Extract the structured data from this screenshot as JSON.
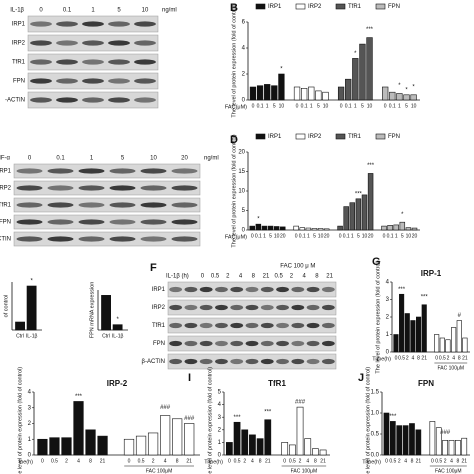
{
  "panels": [
    "B",
    "D",
    "F",
    "G",
    "I",
    "J"
  ],
  "blots": [
    {
      "treatment": "IL-1β",
      "doses": [
        "0",
        "0.1",
        "1",
        "5",
        "10"
      ],
      "unit": "ng/ml",
      "rows": [
        "IRP1",
        "IRP2",
        "TfR1",
        "FPN",
        "-ACTIN"
      ]
    },
    {
      "treatment": "TNF-α",
      "doses": [
        "0",
        "0.1",
        "1",
        "5",
        "10",
        "20"
      ],
      "unit": "ng/ml",
      "rows": [
        "IRP1",
        "IRP2",
        "TfR1",
        "FPN",
        "CTIN"
      ]
    },
    {
      "treatment": "IL-1β (h)",
      "header": "FAC 100 μ M",
      "doses": [
        "0",
        "0.5",
        "2",
        "4",
        "8",
        "21",
        "0.5",
        "2",
        "4",
        "8",
        "21"
      ],
      "rows": [
        "IRP1",
        "IRP2",
        "TfR1",
        "FPN",
        "β-ACTIN"
      ]
    }
  ],
  "chart_data": [
    {
      "type": "bar",
      "ylabel": "The level of protein expression (fold of control)",
      "xlabel": "FAC(μM)",
      "legend": true,
      "categories": [
        "0",
        "0.1",
        "1",
        "5",
        "10"
      ],
      "ylim": [
        0,
        6
      ],
      "yticks": [
        0,
        2,
        4,
        6
      ],
      "annotations": [
        "*",
        "***",
        "*",
        "*",
        "*",
        "*"
      ],
      "series": [
        {
          "name": "IRP1",
          "color": "#111111",
          "values": [
            1,
            1.1,
            1.2,
            1.1,
            2.0
          ]
        },
        {
          "name": "IRP2",
          "color": "#ffffff",
          "values": [
            1,
            0.9,
            1.0,
            0.7,
            0.6
          ]
        },
        {
          "name": "TfR1",
          "color": "#555555",
          "values": [
            1,
            1.6,
            3.2,
            4.3,
            4.8
          ]
        },
        {
          "name": "FPN",
          "color": "#bbbbbb",
          "values": [
            1,
            0.6,
            0.5,
            0.4,
            0.4
          ]
        }
      ]
    },
    {
      "type": "bar",
      "ylabel": "The level of protein expression (fold of control)",
      "xlabel": "FAC(μM)",
      "legend": true,
      "categories": [
        "0",
        "0.1",
        "1",
        "5",
        "10",
        "20"
      ],
      "ylim": [
        0,
        20
      ],
      "yticks": [
        0,
        5,
        10,
        15,
        20
      ],
      "annotations": [
        "*",
        "***",
        "***",
        "*"
      ],
      "series": [
        {
          "name": "IRP1",
          "color": "#111111",
          "values": [
            1,
            1.5,
            1,
            1,
            0.9,
            0.8
          ]
        },
        {
          "name": "IRP2",
          "color": "#ffffff",
          "values": [
            1,
            0.6,
            0.5,
            0.4,
            0.4,
            0.3
          ]
        },
        {
          "name": "TfR1",
          "color": "#555555",
          "values": [
            1,
            6,
            7,
            8,
            9,
            14.5
          ]
        },
        {
          "name": "FPN",
          "color": "#bbbbbb",
          "values": [
            1,
            1.2,
            1.3,
            2,
            0.6,
            0.5
          ]
        }
      ]
    },
    {
      "type": "bar",
      "title": "IRP-1",
      "ylabel": "The level of protein expression (fold of control)",
      "xlabel": "Time(h)",
      "categories": [
        "0",
        "0.5",
        "2",
        "4",
        "8",
        "21"
      ],
      "ylim": [
        0,
        4
      ],
      "yticks": [
        0,
        1,
        2,
        3,
        4
      ],
      "annotations": [
        "***",
        "***",
        "#"
      ],
      "series": [
        {
          "color": "#111111",
          "values": [
            1,
            3.3,
            2.2,
            1.8,
            2.0,
            2.7
          ]
        },
        {
          "name": "FAC 100μM",
          "color": "#ffffff",
          "values": [
            1,
            0.8,
            0.7,
            1.4,
            1.8,
            0.8
          ]
        }
      ]
    },
    {
      "type": "bar",
      "title": "IRP-2",
      "ylabel": "The level of protein expression (fold of control)",
      "xlabel": "me(h)",
      "categories": [
        "0",
        "0.5",
        "2",
        "4",
        "8",
        "21"
      ],
      "ylim": [
        0,
        4
      ],
      "yticks": [
        0,
        1,
        2,
        3,
        4
      ],
      "annotations": [
        "***",
        "###",
        "###"
      ],
      "series": [
        {
          "color": "#111111",
          "values": [
            1,
            1.1,
            1.1,
            3.4,
            1.6,
            1.2
          ]
        },
        {
          "name": "FAC 100μM",
          "color": "#ffffff",
          "values": [
            1,
            1.2,
            1.4,
            2.5,
            2.3,
            2.0
          ]
        }
      ]
    },
    {
      "type": "bar",
      "title": "TfR1",
      "ylabel": "The level of protein expression (fold of control)",
      "xlabel": "Time(h)",
      "categories": [
        "0",
        "0.5",
        "2",
        "4",
        "8",
        "21"
      ],
      "ylim": [
        0,
        5
      ],
      "yticks": [
        0,
        1,
        2,
        3,
        4,
        5
      ],
      "annotations": [
        "***",
        "***",
        "###"
      ],
      "series": [
        {
          "color": "#111111",
          "values": [
            1,
            2.6,
            2.0,
            1.6,
            1.3,
            2.8
          ]
        },
        {
          "name": "FAC 100μM",
          "color": "#ffffff",
          "values": [
            1,
            0.8,
            3.8,
            1.3,
            0.5,
            0.4
          ]
        }
      ]
    },
    {
      "type": "bar",
      "title": "FPN",
      "ylabel": "The level of protein expression (fold of control)",
      "xlabel": "Time(h)",
      "categories": [
        "0",
        "0.5",
        "2",
        "4",
        "8",
        "21"
      ],
      "ylim": [
        0,
        1.5
      ],
      "yticks": [
        {
          "value": 0,
          "label": "0.0"
        },
        {
          "value": 0.5,
          "label": "0.5"
        },
        {
          "value": 1,
          "label": "1.0"
        },
        {
          "value": 1.5,
          "label": "1.5"
        }
      ],
      "annotations": [
        "***",
        "###"
      ],
      "series": [
        {
          "color": "#111111",
          "values": [
            1,
            0.8,
            0.7,
            0.7,
            0.75,
            0.6
          ]
        },
        {
          "name": "FAC 100μM",
          "color": "#ffffff",
          "values": [
            0.8,
            0.65,
            0.35,
            0.35,
            0.35,
            0.4
          ]
        }
      ]
    },
    {
      "type": "bar",
      "ylabel": "of control",
      "categories": [
        "Ctrl",
        "IL-1β"
      ],
      "ylim": [
        0,
        6
      ],
      "yticks": [],
      "annotations": [
        "*"
      ],
      "series": [
        {
          "color": "#111111",
          "values": [
            1,
            5.5
          ]
        }
      ]
    },
    {
      "type": "bar",
      "ylabel": "FPN mRNA expression",
      "categories": [
        "Ctrl",
        "IL-1β"
      ],
      "ylim": [
        0,
        1.5
      ],
      "yticks": [],
      "annotations": [
        "*"
      ],
      "series": [
        {
          "color": "#111111",
          "values": [
            1.3,
            0.2
          ]
        }
      ]
    }
  ]
}
